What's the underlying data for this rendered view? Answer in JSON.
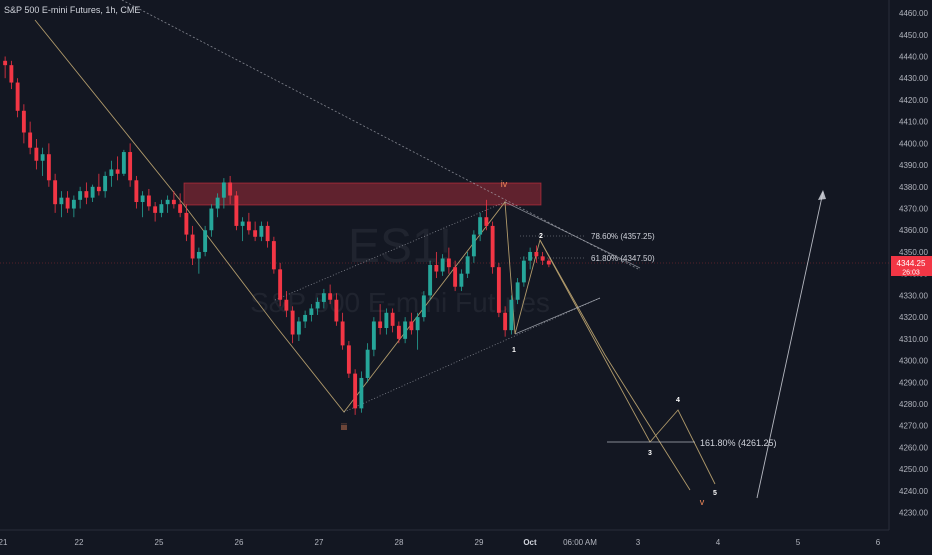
{
  "symbol_title": "S&P 500 E-mini Futures, 1h, CME",
  "watermark": {
    "ticker": "ES1!",
    "name": "S&P 500 E-mini Futures"
  },
  "price_tag": {
    "price": "4344.25",
    "countdown": "26:03",
    "color": "#f23645"
  },
  "colors": {
    "background": "#131722",
    "up": "#26a69a",
    "down": "#f23645",
    "zone": "#f23645",
    "wave_line": "#b09a6b",
    "channel_line": "#b2b5be",
    "forecast_line": "#d1d4dc"
  },
  "chart_data": {
    "type": "candlestick",
    "y_axis": {
      "position": "right",
      "min": 4222,
      "max": 4466,
      "tick_labels": [
        "4230.00",
        "4240.00",
        "4250.00",
        "4260.00",
        "4270.00",
        "4280.00",
        "4290.00",
        "4300.00",
        "4310.00",
        "4320.00",
        "4330.00",
        "4340.00",
        "4350.00",
        "4360.00",
        "4370.00",
        "4380.00",
        "4390.00",
        "4400.00",
        "4410.00",
        "4420.00",
        "4430.00",
        "4440.00",
        "4450.00",
        "4460.00"
      ]
    },
    "x_axis": {
      "tick_labels": [
        "21",
        "22",
        "25",
        "26",
        "27",
        "28",
        "29",
        "Oct",
        "06:00 AM",
        "3",
        "4",
        "5",
        "6"
      ]
    },
    "grid": false,
    "candles_ohlc_estimated": [
      [
        4438,
        4440,
        4430,
        4436
      ],
      [
        4436,
        4438,
        4425,
        4428
      ],
      [
        4428,
        4430,
        4412,
        4415
      ],
      [
        4415,
        4418,
        4400,
        4405
      ],
      [
        4405,
        4410,
        4395,
        4398
      ],
      [
        4398,
        4402,
        4388,
        4392
      ],
      [
        4392,
        4398,
        4385,
        4395
      ],
      [
        4395,
        4400,
        4380,
        4383
      ],
      [
        4383,
        4386,
        4368,
        4372
      ],
      [
        4372,
        4378,
        4366,
        4375
      ],
      [
        4375,
        4378,
        4368,
        4370
      ],
      [
        4370,
        4376,
        4366,
        4374
      ],
      [
        4374,
        4380,
        4370,
        4378
      ],
      [
        4378,
        4382,
        4372,
        4375
      ],
      [
        4375,
        4381,
        4373,
        4380
      ],
      [
        4380,
        4386,
        4376,
        4378
      ],
      [
        4378,
        4387,
        4375,
        4385
      ],
      [
        4385,
        4392,
        4380,
        4388
      ],
      [
        4388,
        4394,
        4383,
        4386
      ],
      [
        4386,
        4397,
        4385,
        4396
      ],
      [
        4396,
        4400,
        4380,
        4383
      ],
      [
        4383,
        4385,
        4370,
        4373
      ],
      [
        4373,
        4378,
        4366,
        4376
      ],
      [
        4376,
        4379,
        4369,
        4371
      ],
      [
        4371,
        4373,
        4364,
        4368
      ],
      [
        4368,
        4374,
        4366,
        4372
      ],
      [
        4372,
        4376,
        4368,
        4374
      ],
      [
        4374,
        4378,
        4370,
        4372
      ],
      [
        4372,
        4377,
        4366,
        4368
      ],
      [
        4368,
        4372,
        4355,
        4358
      ],
      [
        4358,
        4362,
        4344,
        4347
      ],
      [
        4347,
        4352,
        4340,
        4350
      ],
      [
        4350,
        4362,
        4348,
        4360
      ],
      [
        4360,
        4372,
        4357,
        4370
      ],
      [
        4370,
        4377,
        4366,
        4375
      ],
      [
        4375,
        4384,
        4370,
        4382
      ],
      [
        4382,
        4385,
        4372,
        4376
      ],
      [
        4376,
        4378,
        4360,
        4362
      ],
      [
        4362,
        4366,
        4355,
        4364
      ],
      [
        4364,
        4368,
        4358,
        4360
      ],
      [
        4360,
        4364,
        4355,
        4357
      ],
      [
        4357,
        4364,
        4355,
        4362
      ],
      [
        4362,
        4364,
        4352,
        4355
      ],
      [
        4355,
        4357,
        4340,
        4342
      ],
      [
        4342,
        4345,
        4325,
        4328
      ],
      [
        4328,
        4332,
        4320,
        4323
      ],
      [
        4323,
        4325,
        4308,
        4312
      ],
      [
        4312,
        4320,
        4309,
        4318
      ],
      [
        4318,
        4323,
        4315,
        4321
      ],
      [
        4321,
        4326,
        4318,
        4324
      ],
      [
        4324,
        4329,
        4321,
        4327
      ],
      [
        4327,
        4333,
        4324,
        4331
      ],
      [
        4331,
        4335,
        4326,
        4328
      ],
      [
        4328,
        4331,
        4316,
        4318
      ],
      [
        4318,
        4322,
        4305,
        4307
      ],
      [
        4307,
        4309,
        4292,
        4294
      ],
      [
        4294,
        4296,
        4275,
        4278
      ],
      [
        4278,
        4295,
        4276,
        4292
      ],
      [
        4292,
        4308,
        4290,
        4305
      ],
      [
        4305,
        4320,
        4302,
        4318
      ],
      [
        4318,
        4326,
        4312,
        4315
      ],
      [
        4315,
        4324,
        4312,
        4322
      ],
      [
        4322,
        4324,
        4313,
        4316
      ],
      [
        4316,
        4318,
        4308,
        4310
      ],
      [
        4310,
        4320,
        4308,
        4318
      ],
      [
        4318,
        4322,
        4312,
        4314
      ],
      [
        4314,
        4322,
        4305,
        4320
      ],
      [
        4320,
        4332,
        4318,
        4330
      ],
      [
        4330,
        4346,
        4328,
        4344
      ],
      [
        4344,
        4350,
        4338,
        4341
      ],
      [
        4341,
        4349,
        4339,
        4347
      ],
      [
        4347,
        4352,
        4340,
        4343
      ],
      [
        4343,
        4346,
        4332,
        4334
      ],
      [
        4334,
        4342,
        4332,
        4340
      ],
      [
        4340,
        4350,
        4338,
        4348
      ],
      [
        4348,
        4360,
        4345,
        4358
      ],
      [
        4358,
        4368,
        4355,
        4366
      ],
      [
        4366,
        4374,
        4360,
        4362
      ],
      [
        4362,
        4364,
        4340,
        4343
      ],
      [
        4343,
        4345,
        4320,
        4322
      ],
      [
        4322,
        4325,
        4311,
        4314
      ],
      [
        4314,
        4330,
        4312,
        4328
      ],
      [
        4328,
        4338,
        4326,
        4336
      ],
      [
        4336,
        4348,
        4334,
        4346
      ],
      [
        4346,
        4352,
        4342,
        4350
      ],
      [
        4350,
        4353,
        4345,
        4348
      ],
      [
        4348,
        4350,
        4344,
        4346
      ],
      [
        4346,
        4347,
        4343,
        4344.25
      ]
    ],
    "annotations": [
      {
        "text": "iv",
        "price": 4378
      },
      {
        "text": "iii",
        "price": 4270
      },
      {
        "text": "1",
        "price": 4306
      },
      {
        "text": "2",
        "price": 4360
      },
      {
        "text": "3",
        "price": 4258
      },
      {
        "text": "4",
        "price": 4280
      },
      {
        "text": "5",
        "price": 4241
      },
      {
        "text": "v",
        "price": 4235
      }
    ],
    "fib_levels": [
      {
        "label": "78.60% (4357.25)",
        "price": 4357.25
      },
      {
        "label": "61.80% (4347.50)",
        "price": 4347.5
      },
      {
        "label": "161.80% (4261.25)",
        "price": 4261.25
      }
    ],
    "supply_zone": {
      "from": 4372,
      "to": 4383
    },
    "watermark_visible": true
  }
}
